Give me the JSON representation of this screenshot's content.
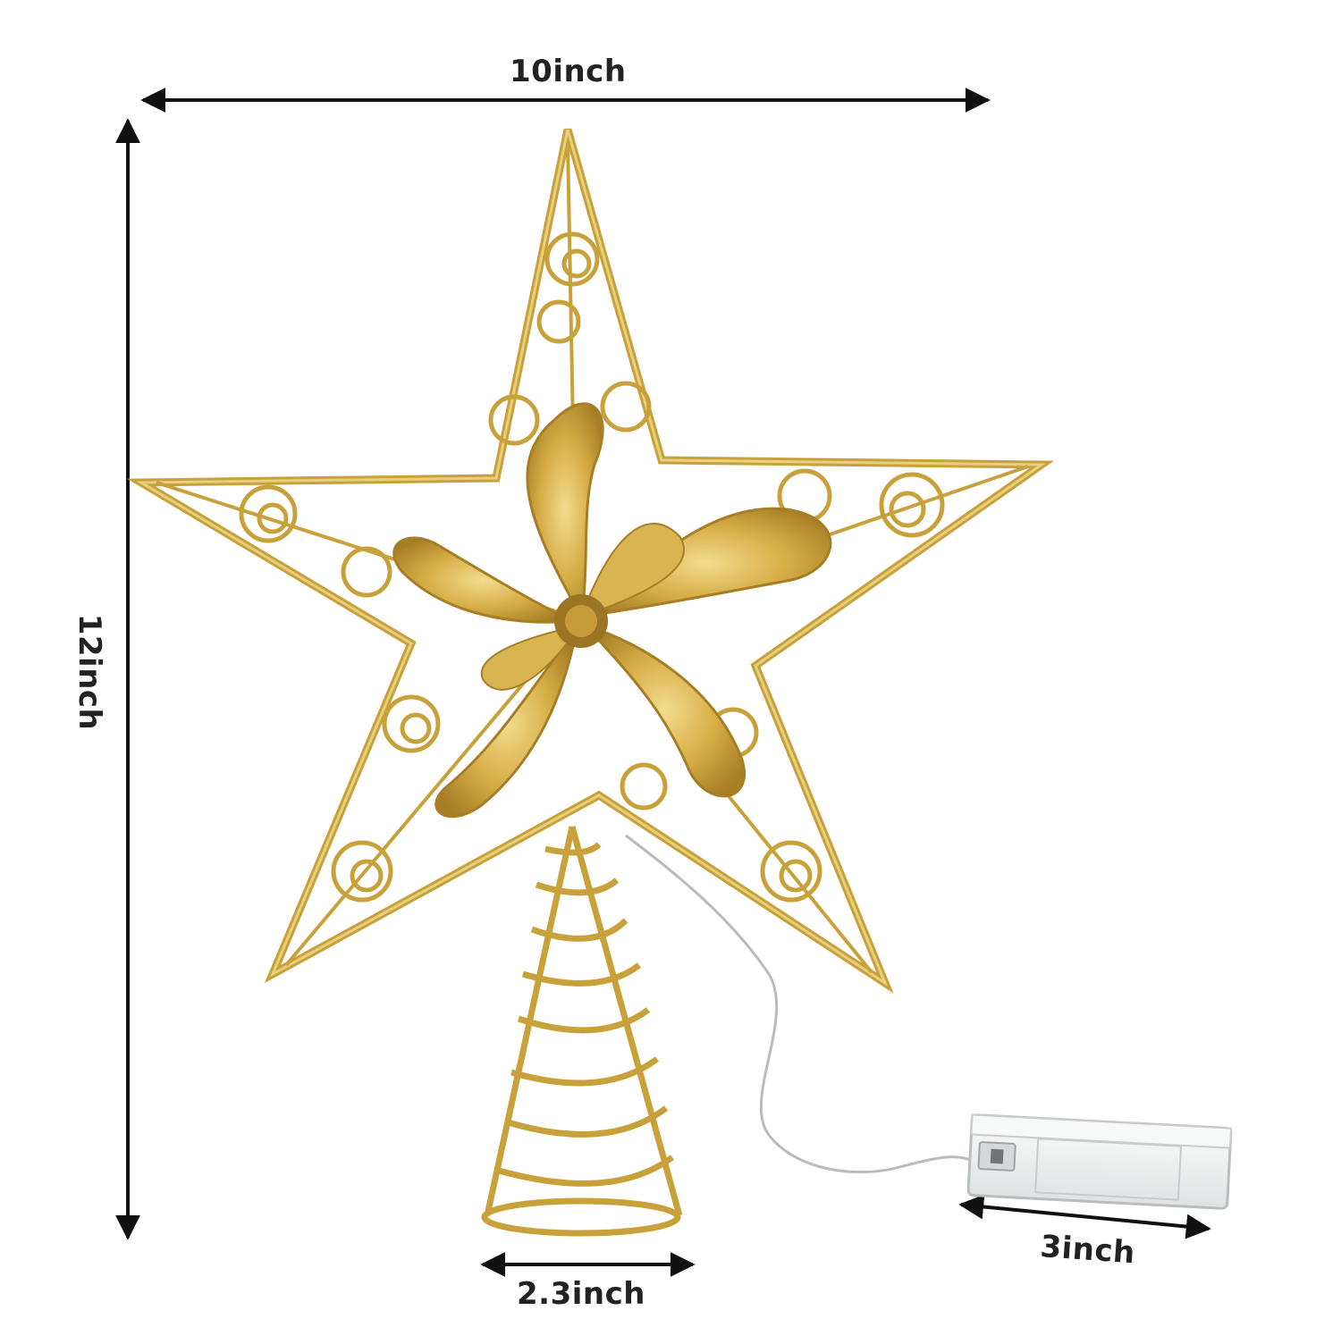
{
  "colors": {
    "gold": "#c9a13a",
    "gold_light": "#e8cf7e",
    "gold_dark": "#8a6a1c",
    "arrow": "#111111",
    "box": "#eef0f0"
  },
  "dimensions": {
    "width_label": "10inch",
    "height_label": "12inch",
    "base_label": "2.3inch",
    "battery_box_label": "3inch"
  },
  "product": {
    "star_icon": "star-icon",
    "battery_icon": "battery-box-icon"
  }
}
